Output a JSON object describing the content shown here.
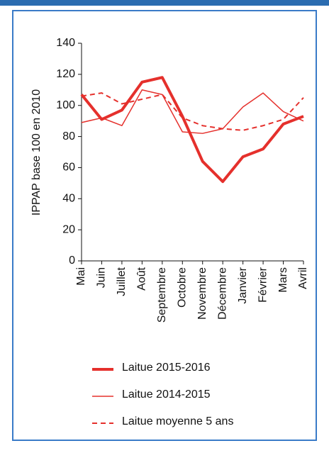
{
  "chart_data": {
    "type": "line",
    "y_label": "IPPAP base 100 en 2010",
    "categories": [
      "Mai",
      "Juin",
      "Juillet",
      "Août",
      "Septembre",
      "Octobre",
      "Novembre",
      "Décembre",
      "Janvier",
      "Février",
      "Mars",
      "Avril"
    ],
    "series": [
      {
        "name": "Laitue 2015-2016",
        "color": "#e5302c",
        "line_width": 4,
        "line_style": "solid",
        "values": [
          107,
          91,
          97,
          115,
          118,
          93,
          64,
          51,
          67,
          72,
          88,
          93
        ]
      },
      {
        "name": "Laitue 2014-2015",
        "color": "#e5302c",
        "line_width": 1.5,
        "line_style": "solid",
        "values": [
          89,
          92,
          87,
          110,
          107,
          83,
          82,
          85,
          99,
          108,
          96,
          90
        ]
      },
      {
        "name": "Laitue moyenne 5 ans",
        "color": "#e5302c",
        "line_width": 2,
        "line_style": "dashed",
        "values": [
          106,
          108,
          101,
          104,
          107,
          92,
          87,
          85,
          84,
          87,
          91,
          105
        ]
      }
    ],
    "ylim": [
      0,
      140
    ],
    "yticks": [
      0,
      20,
      40,
      60,
      80,
      100,
      120,
      140
    ],
    "grid": false
  }
}
